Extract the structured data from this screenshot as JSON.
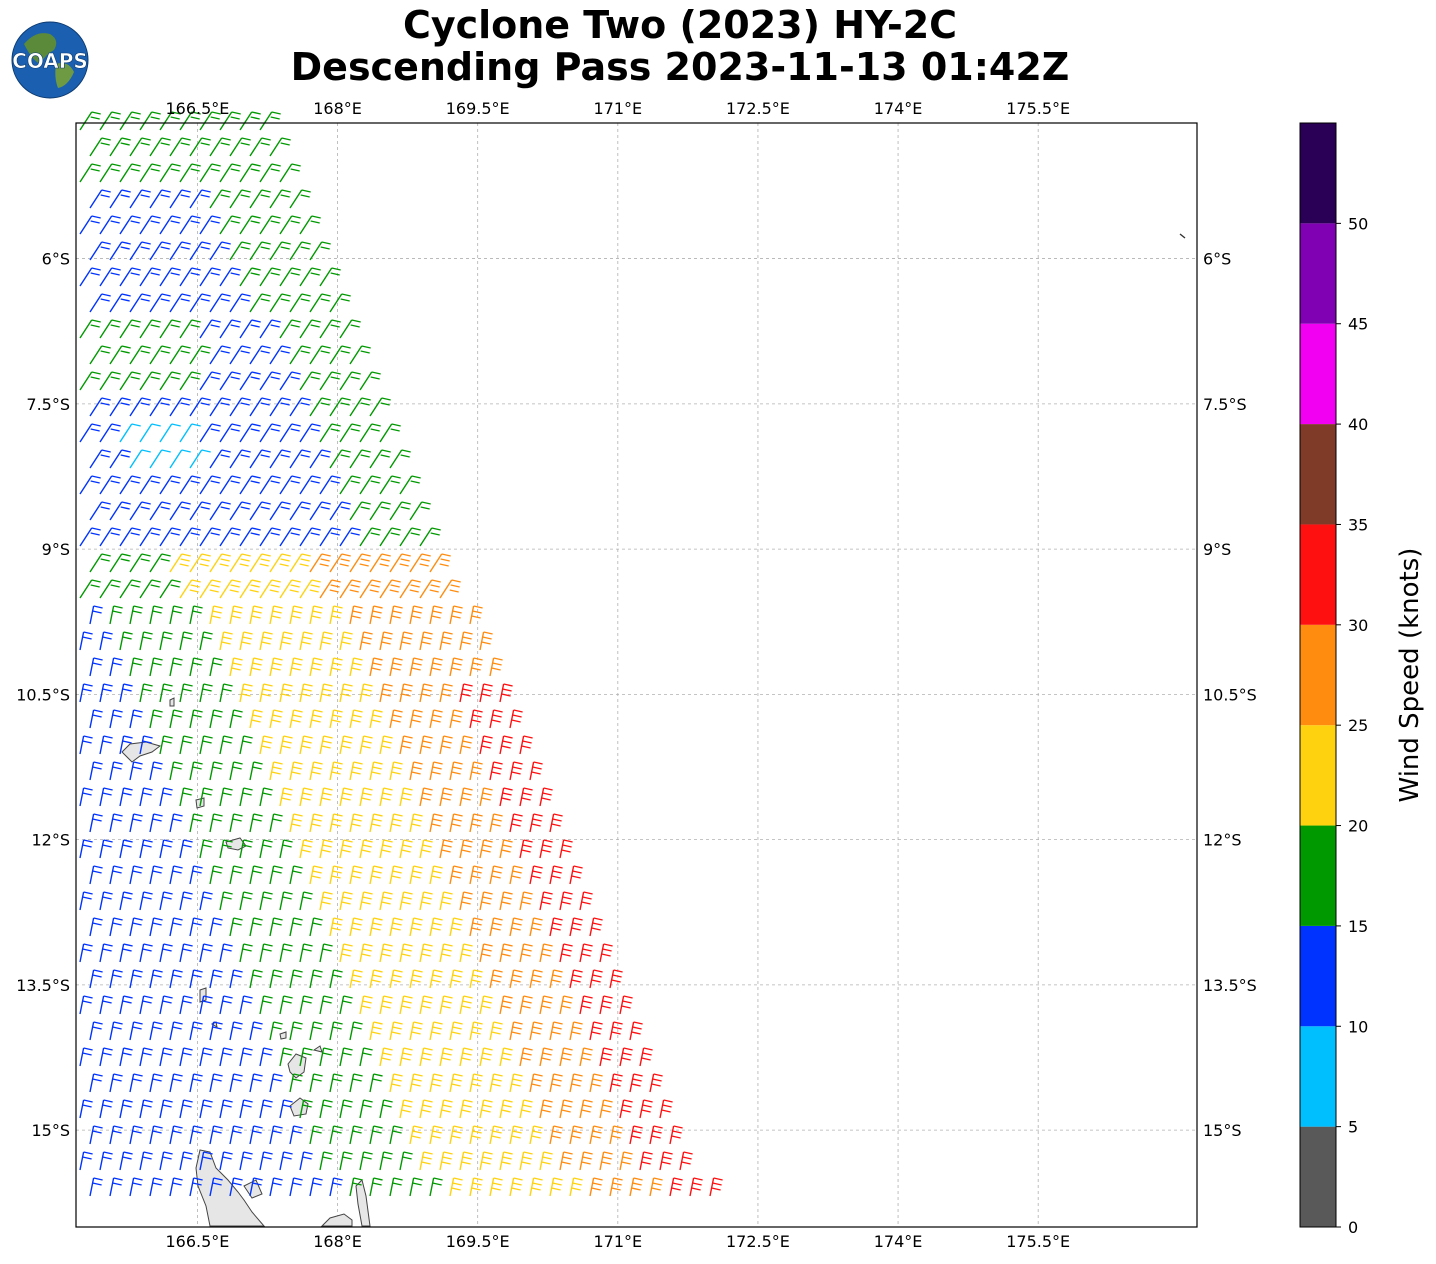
{
  "title": {
    "line1": "Cyclone Two (2023) HY-2C",
    "line2": "Descending Pass 2023-11-13 01:42Z"
  },
  "logo": {
    "text": "COAPS",
    "ocean_color": "#1b5fb0",
    "land_color": "#5a8a3a"
  },
  "map": {
    "lon_range": [
      165.2,
      177.2
    ],
    "lat_range": [
      -16.0,
      -4.6
    ],
    "lon_ticks": [
      "166.5°E",
      "168°E",
      "169.5°E",
      "171°E",
      "172.5°E",
      "174°E",
      "175.5°E"
    ],
    "lat_ticks": [
      "6°S",
      "7.5°S",
      "9°S",
      "10.5°S",
      "12°S",
      "13.5°S",
      "15°S"
    ],
    "grid": true,
    "coastline_color": "#444444",
    "land_fill": "#e6e6e6"
  },
  "wind_barbs_summary": {
    "description_icon": "wind-barb-icon",
    "swath_edges_lon_at_top": [
      165.2,
      167.6
    ],
    "swath_edges_lon_at_bottom": [
      165.2,
      171.6
    ]
  },
  "colorbar": {
    "label": "Wind Speed (knots)",
    "bins": [
      0,
      5,
      10,
      15,
      20,
      25,
      30,
      35,
      40,
      45,
      50,
      55
    ],
    "tick_labels": [
      "0",
      "5",
      "10",
      "15",
      "20",
      "25",
      "30",
      "35",
      "40",
      "45",
      "50"
    ],
    "colors": [
      "#595959",
      "#00bfff",
      "#0033ff",
      "#009900",
      "#ffd20f",
      "#ff8c0f",
      "#ff1010",
      "#7f3a28",
      "#f200f2",
      "#8000b3",
      "#2a0057"
    ]
  }
}
